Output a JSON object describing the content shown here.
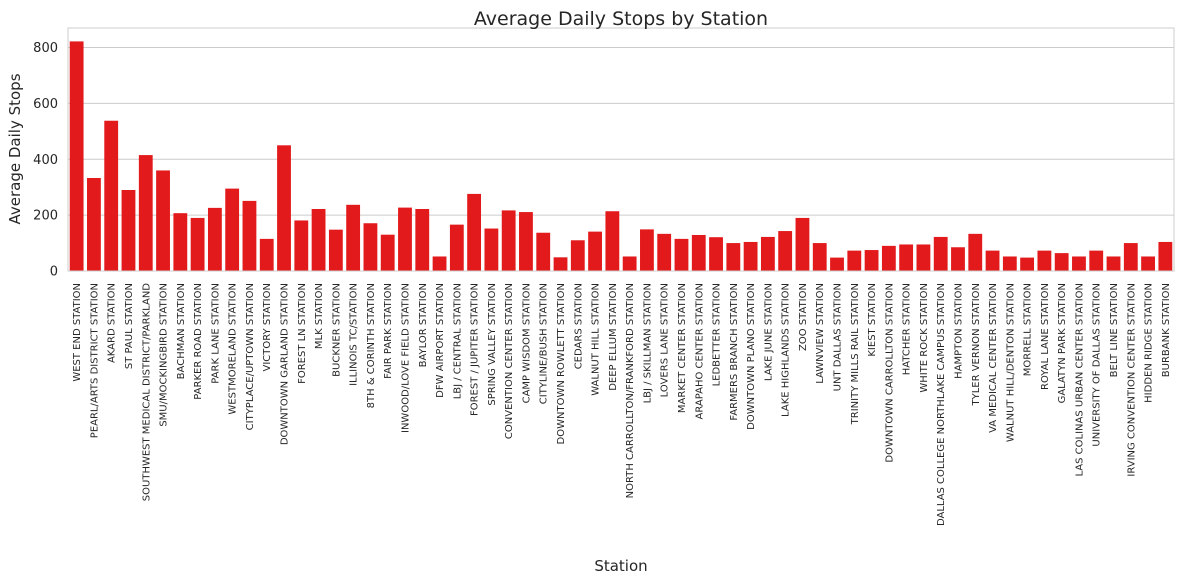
{
  "chart_data": {
    "type": "bar",
    "title": "Average Daily Stops by Station",
    "xlabel": "Station",
    "ylabel": "Average Daily Stops",
    "ylim": [
      0,
      870
    ],
    "yticks": [
      0,
      200,
      400,
      600,
      800
    ],
    "grid": "horizontal",
    "bar_color": "#e31a1c",
    "categories": [
      "WEST END STATION",
      "PEARL/ARTS DISTRICT STATION",
      "AKARD STATION",
      "ST PAUL STATION",
      "SOUTHWEST MEDICAL DISTRICT/PARKLAND",
      "SMU/MOCKINGBIRD STATION",
      "BACHMAN STATION",
      "PARKER ROAD STATION",
      "PARK LANE STATION",
      "WESTMORELAND STATION",
      "CITYPLACE/UPTOWN STATION",
      "VICTORY STATION",
      "DOWNTOWN GARLAND STATION",
      "FOREST LN STATION",
      "MLK STATION",
      "BUCKNER STATION",
      "ILLINOIS TC/STATION",
      "8TH & CORINTH STATION",
      "FAIR PARK STATION",
      "INWOOD/LOVE FIELD STATION",
      "BAYLOR STATION",
      "DFW AIRPORT STATION",
      "LBJ / CENTRAL STATION",
      "FOREST / JUPITER STATION",
      "SPRING VALLEY STATION",
      "CONVENTION CENTER STATION",
      "CAMP WISDOM STATION",
      "CITYLINE/BUSH STATION",
      "DOWNTOWN ROWLETT STATION",
      "CEDARS STATION",
      "WALNUT HILL STATION",
      "DEEP ELLUM STATION",
      "NORTH CARROLLTON/FRANKFORD STATION",
      "LBJ / SKILLMAN STATION",
      "LOVERS LANE STATION",
      "MARKET CENTER STATION",
      "ARAPAHO CENTER STATION",
      "LEDBETTER STATION",
      "FARMERS BRANCH STATION",
      "DOWNTOWN PLANO STATION",
      "LAKE JUNE STATION",
      "LAKE HIGHLANDS STATION",
      "ZOO STATION",
      "LAWNVIEW STATION",
      "UNT DALLAS STATION",
      "TRINITY MILLS RAIL STATION",
      "KIEST STATION",
      "DOWNTOWN CARROLLTON STATION",
      "HATCHER STATION",
      "WHITE ROCK STATION",
      "DALLAS COLLEGE NORTHLAKE CAMPUS STATION",
      "HAMPTON STATION",
      "TYLER VERNON STATION",
      "VA MEDICAL CENTER STATION",
      "WALNUT HILL/DENTON STATION",
      "MORRELL STATION",
      "ROYAL LANE STATION",
      "GALATYN PARK STATION",
      "LAS COLINAS URBAN CENTER STATION",
      "UNIVERSITY OF DALLAS STATION",
      "BELT LINE STATION",
      "IRVING CONVENTION CENTER STATION",
      "HIDDEN RIDGE STATION",
      "BURBANK STATION"
    ],
    "values": [
      822,
      333,
      538,
      290,
      415,
      360,
      207,
      190,
      226,
      295,
      251,
      115,
      450,
      181,
      222,
      148,
      237,
      171,
      130,
      227,
      222,
      52,
      166,
      276,
      152,
      217,
      211,
      137,
      49,
      110,
      141,
      214,
      52,
      149,
      133,
      115,
      129,
      121,
      100,
      104,
      122,
      143,
      190,
      100,
      48,
      73,
      75,
      90,
      95,
      95,
      122,
      85,
      133,
      73,
      52,
      48,
      73,
      64,
      52,
      73,
      52,
      100,
      52,
      104
    ]
  }
}
